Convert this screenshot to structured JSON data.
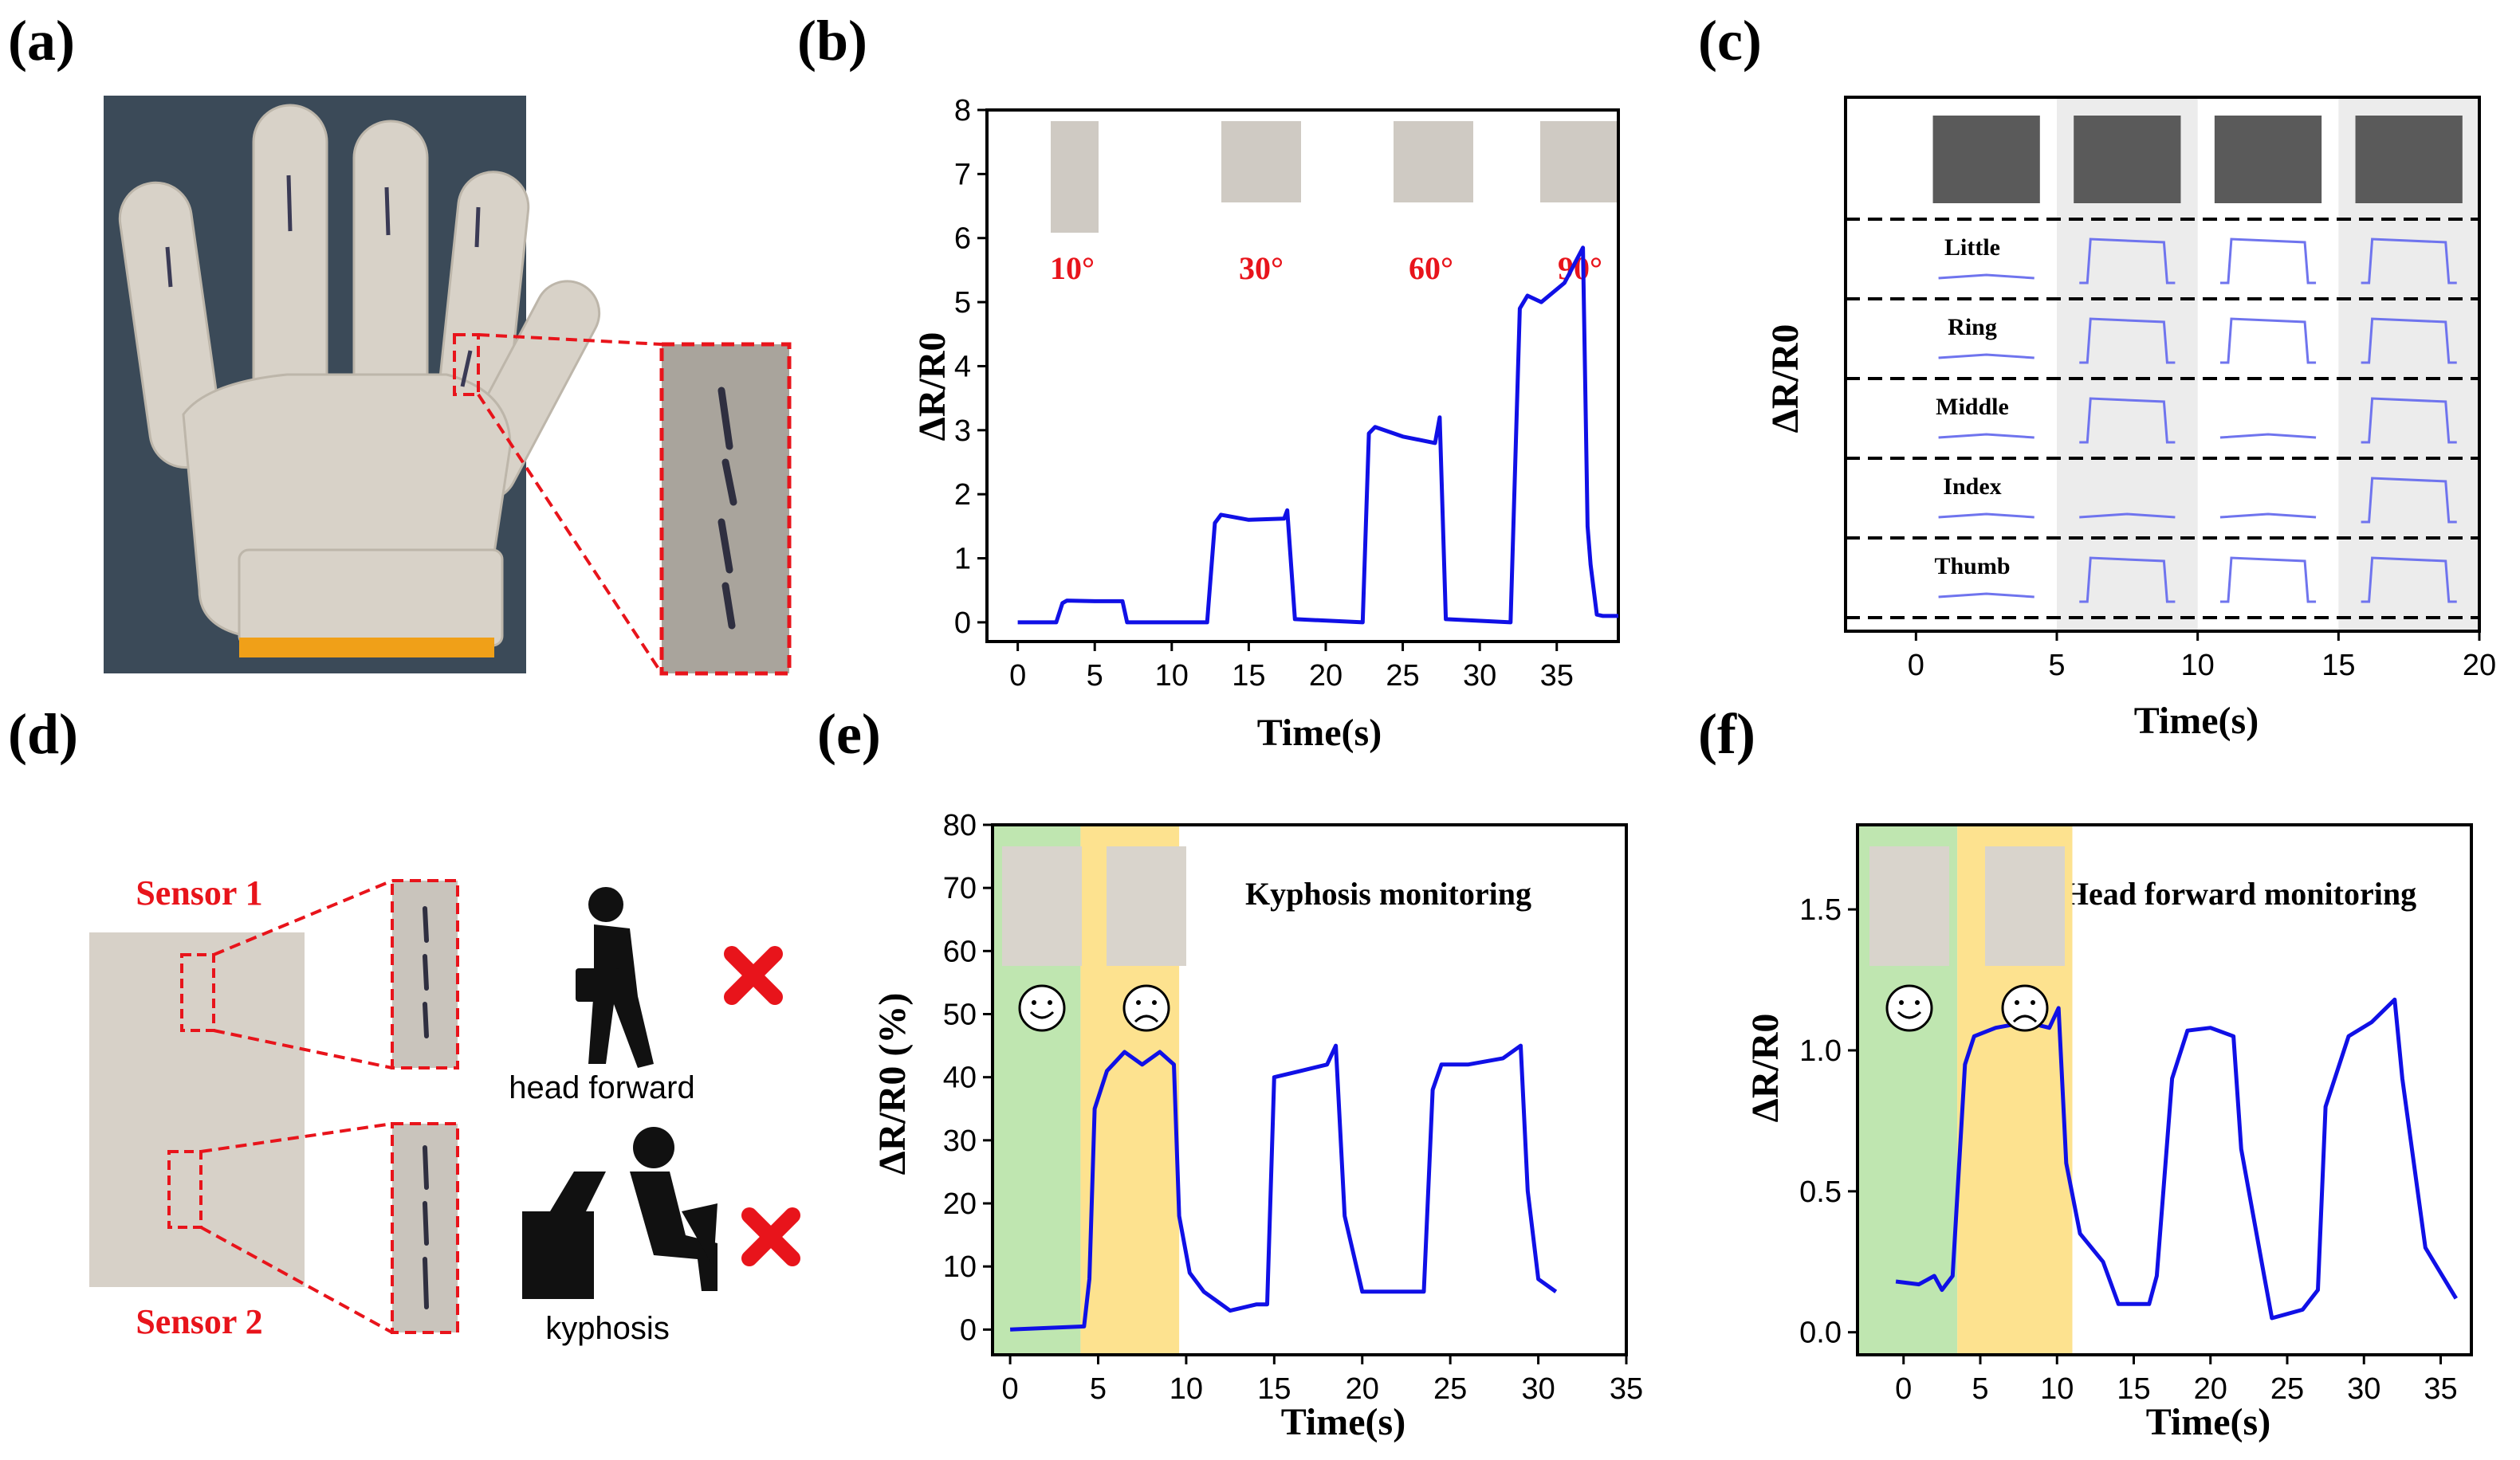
{
  "panels": {
    "a": {
      "label": "(a)"
    },
    "b": {
      "label": "(b)"
    },
    "c": {
      "label": "(c)"
    },
    "d": {
      "label": "(d)",
      "sensor1": "Sensor 1",
      "sensor2": "Sensor 2",
      "icon1_caption": "head forward",
      "icon2_caption": "kyphosis"
    },
    "e": {
      "label": "(e)"
    },
    "f": {
      "label": "(f)"
    }
  },
  "colors": {
    "line": "#1010e6",
    "c_line": "#6f74ee",
    "green": "#bfe6b0",
    "yellow": "#fde28f",
    "red": "#e8141b"
  },
  "chart_data": [
    {
      "id": "b",
      "type": "line",
      "title": "",
      "xlabel": "Time(s)",
      "ylabel": "ΔR/R0",
      "xlim": [
        -2,
        39
      ],
      "ylim": [
        -0.3,
        8
      ],
      "xticks": [
        0,
        5,
        10,
        15,
        20,
        25,
        30,
        35
      ],
      "yticks": [
        0,
        1,
        2,
        3,
        4,
        5,
        6,
        7,
        8
      ],
      "angle_labels": [
        "10°",
        "30°",
        "60°",
        "90°"
      ],
      "series": [
        {
          "name": "ΔR/R0",
          "x": [
            0,
            2.5,
            2.9,
            3.2,
            5,
            6.8,
            7.1,
            12.3,
            12.8,
            13.2,
            15,
            17.3,
            17.5,
            18,
            22.4,
            22.8,
            23.2,
            25,
            27.1,
            27.4,
            27.8,
            32,
            32.6,
            33.1,
            34,
            35.5,
            36.7,
            37,
            37.2,
            37.6,
            38,
            39
          ],
          "values": [
            0,
            0,
            0.3,
            0.34,
            0.33,
            0.33,
            0,
            0,
            1.55,
            1.68,
            1.6,
            1.62,
            1.75,
            0.05,
            0,
            2.95,
            3.05,
            2.9,
            2.8,
            3.2,
            0.05,
            0,
            4.9,
            5.1,
            5.0,
            5.3,
            5.85,
            1.5,
            0.9,
            0.12,
            0.1,
            0.1
          ]
        }
      ]
    },
    {
      "id": "c",
      "type": "line",
      "title": "",
      "xlabel": "Time(s)",
      "ylabel": "ΔR/R0",
      "xlim": [
        -2.5,
        20
      ],
      "xticks": [
        0,
        5,
        10,
        15,
        20
      ],
      "fingers": [
        "Little",
        "Ring",
        "Middle",
        "Index",
        "Thumb"
      ],
      "gesture_response": [
        [
          0,
          1,
          1,
          1
        ],
        [
          0,
          1,
          1,
          1
        ],
        [
          0,
          1,
          0,
          1
        ],
        [
          0,
          0,
          0,
          1
        ],
        [
          0,
          1,
          1,
          1
        ]
      ]
    },
    {
      "id": "e",
      "type": "line",
      "title": "Kyphosis monitoring",
      "xlabel": "Time(s)",
      "ylabel": "ΔR/R0 (%)",
      "xlim": [
        -1,
        35
      ],
      "ylim": [
        -4,
        80
      ],
      "xticks": [
        0,
        5,
        10,
        15,
        20,
        25,
        30,
        35
      ],
      "yticks": [
        0,
        10,
        20,
        30,
        40,
        50,
        60,
        70,
        80
      ],
      "shade_green": [
        -1,
        4
      ],
      "shade_yellow": [
        4,
        9.6
      ],
      "series": [
        {
          "name": "ΔR/R0",
          "x": [
            0,
            4.2,
            4.5,
            4.8,
            5.5,
            6.5,
            7.5,
            8.5,
            9.3,
            9.6,
            10.2,
            11,
            12,
            12.5,
            14,
            14.6,
            15,
            16.5,
            18,
            18.5,
            19,
            20,
            21,
            23.5,
            24,
            24.5,
            26,
            28,
            29,
            29.4,
            30,
            31
          ],
          "values": [
            0,
            0.5,
            8,
            35,
            41,
            44,
            42,
            44,
            42,
            18,
            9,
            6,
            4,
            3,
            4,
            4,
            40,
            41,
            42,
            45,
            18,
            6,
            6,
            6,
            38,
            42,
            42,
            43,
            45,
            22,
            8,
            6
          ]
        }
      ]
    },
    {
      "id": "f",
      "type": "line",
      "title": "Head forward monitoring",
      "xlabel": "Time(s)",
      "ylabel": "ΔR/R0",
      "xlim": [
        -3,
        37
      ],
      "ylim": [
        -0.08,
        1.8
      ],
      "xticks": [
        0,
        5,
        10,
        15,
        20,
        25,
        30,
        35
      ],
      "yticks": [
        0.0,
        0.5,
        1.0,
        1.5
      ],
      "shade_green": [
        -3,
        3.5
      ],
      "shade_yellow": [
        3.5,
        11
      ],
      "series": [
        {
          "name": "ΔR/R0",
          "x": [
            -0.5,
            1,
            2,
            2.5,
            3.2,
            4,
            4.6,
            6,
            8,
            9.5,
            10.1,
            10.6,
            11.5,
            13,
            14,
            16,
            16.5,
            17.5,
            18.5,
            20,
            21.5,
            22,
            23.5,
            24,
            26,
            27,
            27.5,
            29,
            30.5,
            32,
            32.5,
            34,
            36
          ],
          "values": [
            0.18,
            0.17,
            0.2,
            0.15,
            0.2,
            0.95,
            1.05,
            1.08,
            1.1,
            1.08,
            1.15,
            0.6,
            0.35,
            0.25,
            0.1,
            0.1,
            0.2,
            0.9,
            1.07,
            1.08,
            1.05,
            0.65,
            0.2,
            0.05,
            0.08,
            0.15,
            0.8,
            1.05,
            1.1,
            1.18,
            0.9,
            0.3,
            0.12
          ]
        }
      ]
    }
  ]
}
